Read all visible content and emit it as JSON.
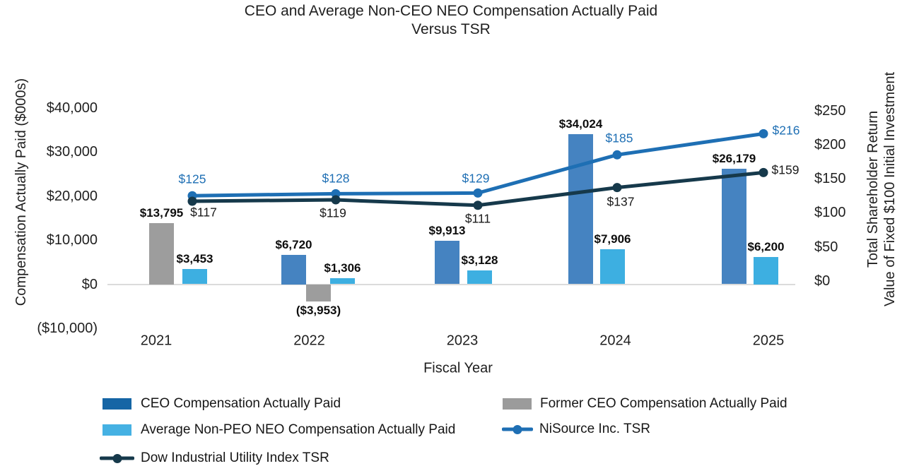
{
  "title": {
    "line1": "CEO and Average Non-CEO NEO Compensation Actually Paid",
    "line2": "Versus TSR"
  },
  "axes": {
    "left_title": "Compensation Actually Paid ($000s)",
    "right_title_line1": "Total Shareholder Return",
    "right_title_line2": "Value of Fixed $100 Initial Investment",
    "x_title": "Fiscal Year",
    "left_ticks": [
      "$40,000",
      "$30,000",
      "$20,000",
      "$10,000",
      "$0",
      "($10,000)"
    ],
    "right_ticks": [
      "$250",
      "$200",
      "$150",
      "$100",
      "$50",
      "$0"
    ]
  },
  "chart_data": {
    "type": "combo-bar-line",
    "categories": [
      "2021",
      "2022",
      "2023",
      "2024",
      "2025"
    ],
    "title": "CEO and Average Non-CEO NEO Compensation Actually Paid Versus TSR",
    "xlabel": "Fiscal Year",
    "ylabel_left": "Compensation Actually Paid ($000s)",
    "ylabel_right": "Total Shareholder Return Value of Fixed $100 Initial Investment",
    "ylim_left": [
      -10000,
      40000
    ],
    "ylim_right": [
      0,
      250
    ],
    "grid": "zero-line-only",
    "legend_position": "bottom",
    "bar_series": [
      {
        "name": "CEO Compensation Actually Paid",
        "legend_color": "#1565A5",
        "bar_color": "#4583C1",
        "values": [
          null,
          6720,
          9913,
          34024,
          26179
        ],
        "labels": [
          null,
          "$6,720",
          "$9,913",
          "$34,024",
          "$26,179"
        ]
      },
      {
        "name": "Former CEO Compensation Actually Paid",
        "legend_color": "#9B9B9B",
        "bar_color": "#9D9D9D",
        "values": [
          13795,
          -3953,
          null,
          null,
          null
        ],
        "labels": [
          "$13,795",
          "($3,953)",
          null,
          null,
          null
        ]
      },
      {
        "name": "Average Non-PEO NEO Compensation Actually Paid",
        "legend_color": "#45B1E3",
        "bar_color": "#3DAFE1",
        "values": [
          3453,
          1306,
          3128,
          7906,
          6200
        ],
        "labels": [
          "$3,453",
          "$1,306",
          "$3,128",
          "$7,906",
          "$6,200"
        ]
      }
    ],
    "line_series": [
      {
        "name": "NiSource Inc. TSR",
        "color": "#1E6FB4",
        "label_color": "#1E6FB4",
        "values": [
          125,
          128,
          129,
          185,
          216
        ],
        "labels": [
          "$125",
          "$128",
          "$129",
          "$185",
          "$216"
        ]
      },
      {
        "name": "Dow Industrial Utility Index TSR",
        "color": "#16394B",
        "label_color": "#1a1a1a",
        "values": [
          117,
          119,
          111,
          137,
          159
        ],
        "labels": [
          "$117",
          "$119",
          "$111",
          "$137",
          "$159"
        ]
      }
    ]
  },
  "legend": {
    "col1": [
      {
        "label": "CEO Compensation Actually Paid",
        "swatch": "square",
        "color": "#1565A5"
      },
      {
        "label": "Average Non-PEO NEO Compensation Actually Paid",
        "swatch": "square",
        "color": "#45B1E3"
      },
      {
        "label": "Dow Industrial Utility Index TSR",
        "swatch": "line-dot",
        "color": "#16394B"
      }
    ],
    "col2": [
      {
        "label": "Former CEO Compensation Actually Paid",
        "swatch": "square",
        "color": "#9B9B9B"
      },
      {
        "label": "NiSource Inc. TSR",
        "swatch": "line-dot",
        "color": "#1E6FB4"
      }
    ]
  },
  "colors": {
    "grid": "#DBDBDB",
    "text": "#1F1F1F"
  }
}
